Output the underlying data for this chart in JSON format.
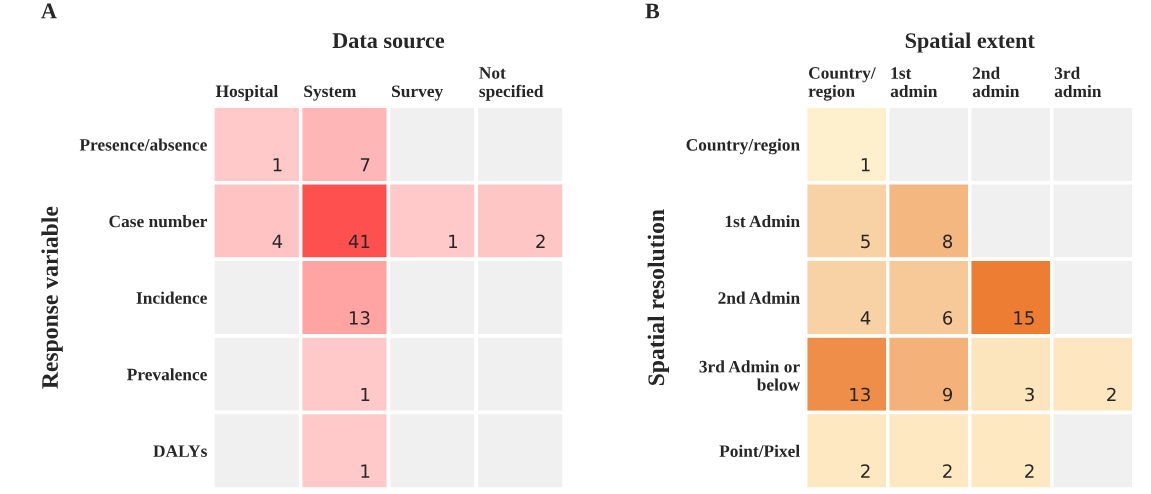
{
  "chart_data": [
    {
      "type": "heatmap",
      "title": "Data source",
      "ylabel": "Response variable",
      "annotations": [
        "A"
      ],
      "categories": [
        "Hospital",
        "System",
        "Survey",
        "Not\nspecified"
      ],
      "y_categories": [
        "Presence/absence",
        "Case number",
        "Incidence",
        "Prevalence",
        "DALYs"
      ],
      "cells": [
        [
          1,
          7,
          null,
          null
        ],
        [
          4,
          41,
          1,
          2
        ],
        [
          null,
          13,
          null,
          null
        ],
        [
          null,
          1,
          null,
          null
        ],
        [
          null,
          1,
          null,
          null
        ]
      ],
      "colors": [
        [
          "#ffc9c9",
          "#ffb6b6",
          null,
          null
        ],
        [
          "#ffc3c3",
          "#ff5050",
          "#ffc9c9",
          "#ffc6c6"
        ],
        [
          null,
          "#ffa3a3",
          null,
          null
        ],
        [
          null,
          "#ffc9c9",
          null,
          null
        ],
        [
          null,
          "#ffc9c9",
          null,
          null
        ]
      ],
      "data_labels": true
    },
    {
      "type": "heatmap",
      "title": "Spatial extent",
      "ylabel": "Spatial resolution",
      "annotations": [
        "B"
      ],
      "categories": [
        "Country/\nregion",
        "1st\nadmin",
        "2nd\nadmin",
        "3rd\nadmin"
      ],
      "y_categories": [
        "Country/region",
        "1st Admin",
        "2nd Admin",
        "3rd Admin or\nbelow",
        "Point/Pixel"
      ],
      "cells": [
        [
          1,
          null,
          null,
          null
        ],
        [
          5,
          8,
          null,
          null
        ],
        [
          4,
          6,
          15,
          null
        ],
        [
          13,
          9,
          3,
          2
        ],
        [
          2,
          2,
          2,
          null
        ]
      ],
      "colors": [
        [
          "#fef0cc",
          null,
          null,
          null
        ],
        [
          "#f8d2a4",
          "#f5b780",
          null,
          null
        ],
        [
          "#f8d2a4",
          "#f7c898",
          "#ec7d33",
          null
        ],
        [
          "#ee8e48",
          "#f4b27a",
          "#fce4bd",
          "#fde6c0"
        ],
        [
          "#fde8c2",
          "#fde8c2",
          "#fde8c2",
          null
        ]
      ],
      "data_labels": true
    }
  ]
}
